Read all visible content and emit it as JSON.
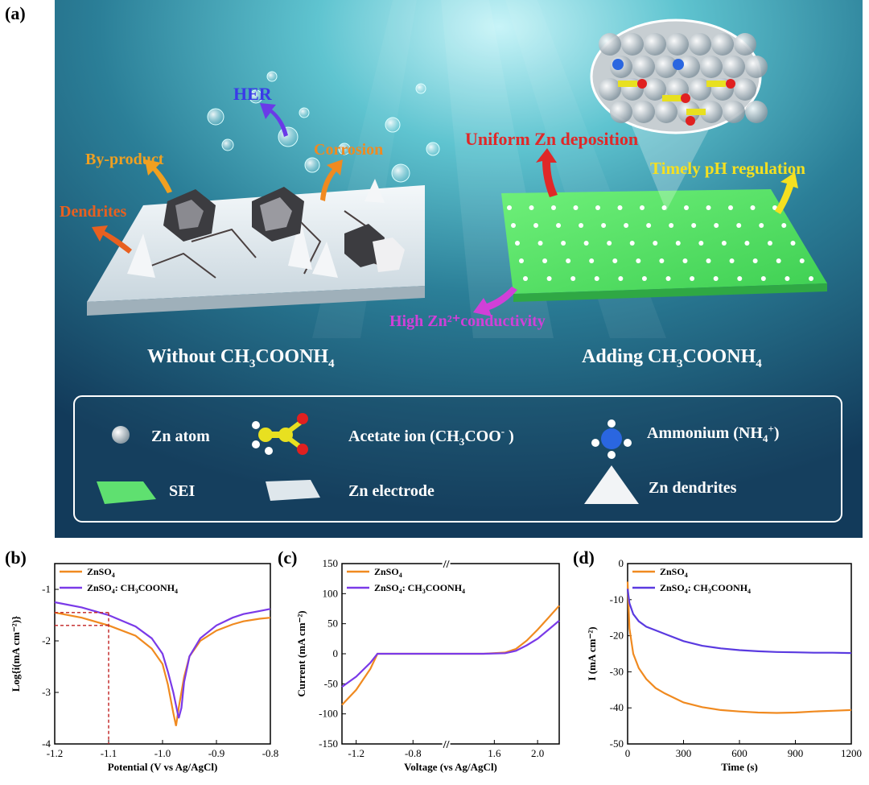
{
  "panels": {
    "a": "(a)",
    "b": "(b)",
    "c": "(c)",
    "d": "(d)"
  },
  "scene": {
    "left_title_main": "Without CH",
    "left_title_sub1": "3",
    "left_title_mid": "COONH",
    "left_title_sub2": "4",
    "right_title_main": "Adding CH",
    "right_title_sub1": "3",
    "right_title_mid": "COONH",
    "right_title_sub2": "4",
    "her": "HER",
    "byproduct": "By-product",
    "corrosion": "Corrosion",
    "dendrites": "Dendrites",
    "uniform": "Uniform Zn deposition",
    "timely": "Timely pH regulation",
    "conductivity": "High Zn²⁺conductivity",
    "legend": {
      "zn_atom": "Zn atom",
      "acetate_main": "Acetate ion (CH",
      "acetate_sub": "3",
      "acetate_end": "COO",
      "acetate_sup": "-",
      "acetate_close": " )",
      "ammonium_main": "Ammonium (NH",
      "ammonium_sub": "4",
      "ammonium_sup": "+",
      "ammonium_close": ")",
      "sei": "SEI",
      "zn_electrode": "Zn electrode",
      "zn_dendrites": "Zn dendrites"
    },
    "colors": {
      "her": "#3a3ae8",
      "byproduct": "#f0a020",
      "corrosion": "#f08a20",
      "dendrites": "#e86020",
      "uniform": "#e02828",
      "timely": "#f5e020",
      "conductivity": "#d040d8"
    }
  },
  "chart_data": [
    {
      "type": "line",
      "id": "b",
      "xlabel": "Potential (V vs Ag/AgCl)",
      "ylabel": "Log{i(mA cm⁻²)}",
      "xlim": [
        -1.2,
        -0.8
      ],
      "ylim": [
        -4,
        -0.5
      ],
      "xticks": [
        -1.2,
        -1.1,
        -1.0,
        -0.9,
        -0.8
      ],
      "xtick_labels": [
        "-1.2",
        "-1.1",
        "-1.0",
        "-0.9",
        "-0.8"
      ],
      "yticks": [
        -4,
        -3,
        -2,
        -1
      ],
      "ytick_labels": [
        "-4",
        "-3",
        "-2",
        "-1"
      ],
      "series": [
        {
          "name": "ZnSO4",
          "color": "#f08a20",
          "x": [
            -1.2,
            -1.15,
            -1.1,
            -1.05,
            -1.02,
            -1.0,
            -0.99,
            -0.98,
            -0.975,
            -0.97,
            -0.96,
            -0.95,
            -0.93,
            -0.9,
            -0.87,
            -0.85,
            -0.82,
            -0.8
          ],
          "y": [
            -1.45,
            -1.55,
            -1.7,
            -1.9,
            -2.15,
            -2.45,
            -2.85,
            -3.4,
            -3.65,
            -3.3,
            -2.7,
            -2.3,
            -2.0,
            -1.8,
            -1.68,
            -1.62,
            -1.57,
            -1.55
          ]
        },
        {
          "name": "ZnSO4: CH3COONH4",
          "color": "#7a3ae8",
          "x": [
            -1.2,
            -1.15,
            -1.1,
            -1.05,
            -1.02,
            -1.0,
            -0.99,
            -0.98,
            -0.97,
            -0.965,
            -0.96,
            -0.95,
            -0.93,
            -0.9,
            -0.87,
            -0.85,
            -0.82,
            -0.8
          ],
          "y": [
            -1.25,
            -1.35,
            -1.5,
            -1.72,
            -1.95,
            -2.25,
            -2.6,
            -3.0,
            -3.5,
            -3.3,
            -2.8,
            -2.3,
            -1.95,
            -1.7,
            -1.55,
            -1.48,
            -1.42,
            -1.38
          ]
        }
      ],
      "guide": {
        "x": -1.1,
        "y": [
          -1.45,
          -1.7
        ]
      },
      "legend": [
        {
          "main": "ZnSO",
          "sub": "4"
        },
        {
          "main": "ZnSO",
          "sub": "4",
          "rest": ": CH",
          "sub2": "3",
          "end": "COONH",
          "sub3": "4"
        }
      ]
    },
    {
      "type": "line",
      "id": "c",
      "xlabel": "Voltage (vs Ag/AgCl)",
      "ylabel": "Current (mA cm⁻²)",
      "ylim": [
        -150,
        150
      ],
      "yticks": [
        -150,
        -100,
        -50,
        0,
        50,
        100,
        150
      ],
      "ytick_labels": [
        "-150",
        "-100",
        "-50",
        "0",
        "50",
        "100",
        "150"
      ],
      "xtick_labels": [
        "-1.2",
        "-0.8",
        "1.6",
        "2.0"
      ],
      "axis_break": "//",
      "series": [
        {
          "name": "ZnSO4",
          "color": "#f08a20",
          "x": [
            -1.3,
            -1.2,
            -1.1,
            -1.05,
            -1.0,
            -0.6,
            1.2,
            1.5,
            1.7,
            1.8,
            1.9,
            2.0,
            2.1,
            2.2
          ],
          "y": [
            -85,
            -60,
            -25,
            0,
            0,
            0,
            0,
            0,
            2,
            8,
            22,
            40,
            60,
            80
          ]
        },
        {
          "name": "ZnSO4: CH3COONH4",
          "color": "#7a3ae8",
          "x": [
            -1.3,
            -1.2,
            -1.1,
            -1.05,
            -1.0,
            -0.6,
            1.2,
            1.5,
            1.7,
            1.8,
            1.9,
            2.0,
            2.1,
            2.2
          ],
          "y": [
            -55,
            -38,
            -15,
            0,
            0,
            0,
            0,
            0,
            1,
            5,
            14,
            25,
            40,
            55
          ]
        }
      ],
      "legend": [
        {
          "main": "ZnSO",
          "sub": "4"
        },
        {
          "main": "ZnSO",
          "sub": "4",
          "rest": ": CH",
          "sub2": "3",
          "end": "COONH",
          "sub3": "4"
        }
      ]
    },
    {
      "type": "line",
      "id": "d",
      "xlabel": "Time (s)",
      "ylabel": "I (mA cm⁻²)",
      "xlim": [
        0,
        1200
      ],
      "ylim": [
        -50,
        0
      ],
      "xticks": [
        0,
        300,
        600,
        900,
        1200
      ],
      "xtick_labels": [
        "0",
        "300",
        "600",
        "900",
        "1200"
      ],
      "yticks": [
        -50,
        -40,
        -30,
        -20,
        -10,
        0
      ],
      "ytick_labels": [
        "-50",
        "-40",
        "-30",
        "-20",
        "-10",
        "0"
      ],
      "series": [
        {
          "name": "ZnSO4",
          "color": "#f08a20",
          "x": [
            0,
            10,
            30,
            60,
            100,
            150,
            200,
            300,
            400,
            500,
            600,
            700,
            800,
            900,
            1000,
            1100,
            1200
          ],
          "y": [
            -5,
            -18,
            -25,
            -29,
            -32,
            -34.5,
            -36,
            -38.5,
            -39.8,
            -40.6,
            -41,
            -41.3,
            -41.4,
            -41.3,
            -41,
            -40.8,
            -40.6
          ]
        },
        {
          "name": "ZnSO4: CH3COONH4",
          "color": "#5a3ae0",
          "x": [
            0,
            10,
            30,
            60,
            100,
            150,
            200,
            300,
            400,
            500,
            600,
            700,
            800,
            900,
            1000,
            1100,
            1200
          ],
          "y": [
            -7,
            -11,
            -14,
            -16,
            -17.5,
            -18.5,
            -19.5,
            -21.5,
            -22.8,
            -23.5,
            -24,
            -24.3,
            -24.5,
            -24.6,
            -24.7,
            -24.7,
            -24.8
          ]
        }
      ],
      "legend": [
        {
          "main": "ZnSO",
          "sub": "4"
        },
        {
          "main": "ZnSO",
          "sub": "4",
          "rest": ": CH",
          "sub2": "3",
          "end": "COONH",
          "sub3": "4"
        }
      ]
    }
  ]
}
